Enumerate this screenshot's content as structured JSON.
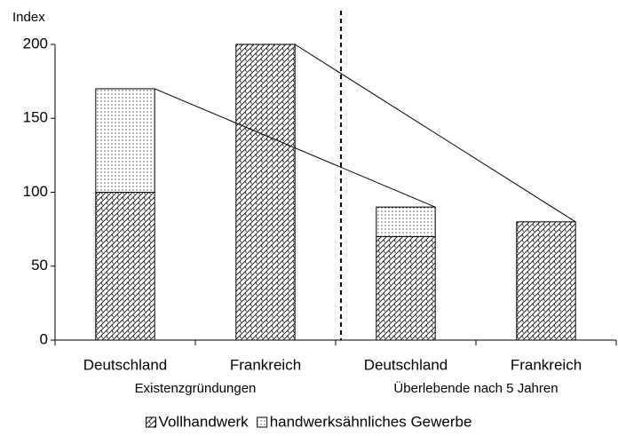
{
  "chart_data": {
    "type": "stacked_bar",
    "y_label": "Index",
    "categories": [
      "Deutschland",
      "Frankreich",
      "Deutschland",
      "Frankreich"
    ],
    "groups": [
      "Existenzgründungen",
      "Überlebende nach 5 Jahren"
    ],
    "series": [
      {
        "name": "Vollhandwerk",
        "color": "#000000",
        "values": [
          100,
          200,
          70,
          80
        ]
      },
      {
        "name": "handwerksähnliches Gewerbe",
        "color": "#000000",
        "values": [
          70,
          0,
          20,
          0
        ]
      }
    ],
    "ylim": [
      0,
      200
    ],
    "yticks": [
      0,
      50,
      100,
      150,
      200
    ],
    "grid": false,
    "legend": "bottom"
  }
}
